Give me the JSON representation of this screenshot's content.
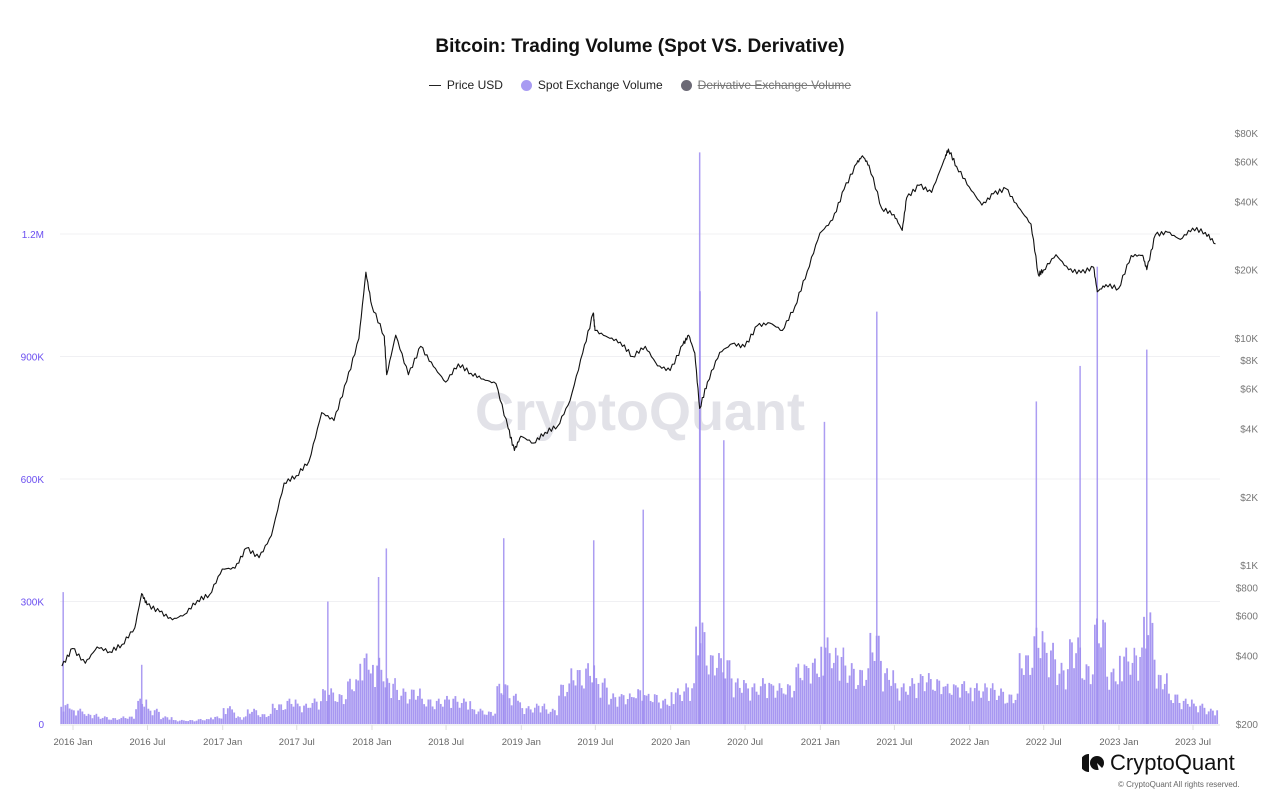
{
  "title": "Bitcoin: Trading Volume (Spot VS. Derivative)",
  "legend": [
    {
      "label": "Price USD",
      "color": "#222222",
      "marker": "line",
      "active": true
    },
    {
      "label": "Spot Exchange Volume",
      "color": "#a89bf2",
      "marker": "circle",
      "active": true
    },
    {
      "label": "Derivative Exchange Volume",
      "color": "#6b6975",
      "marker": "circle",
      "active": false
    }
  ],
  "watermark": "CryptoQuant",
  "logo_text": "CryptoQuant",
  "copyright": "© CryptoQuant All rights reserved.",
  "chart_data": {
    "type": "bar+line",
    "title": "Bitcoin: Trading Volume (Spot VS. Derivative)",
    "x_range": [
      "2015-12-05",
      "2023-08-30"
    ],
    "x_ticks": [
      "2016 Jan",
      "2016 Jul",
      "2017 Jan",
      "2017 Jul",
      "2018 Jan",
      "2018 Jul",
      "2019 Jan",
      "2019 Jul",
      "2020 Jan",
      "2020 Jul",
      "2021 Jan",
      "2021 Jul",
      "2022 Jan",
      "2022 Jul",
      "2023 Jan",
      "2023 Jul"
    ],
    "y_left": {
      "ticks": [
        "0",
        "300K",
        "600K",
        "900K",
        "1.2M"
      ],
      "values": [
        0,
        300000,
        600000,
        900000,
        1200000
      ],
      "range": [
        0,
        1440000
      ],
      "color": "#6b4ff0",
      "grid": true
    },
    "y_right": {
      "scale": "log",
      "ticks": [
        "$200",
        "$400",
        "$600",
        "$800",
        "$1K",
        "$2K",
        "$4K",
        "$6K",
        "$8K",
        "$10K",
        "$20K",
        "$40K",
        "$60K",
        "$80K"
      ],
      "values": [
        200,
        400,
        600,
        800,
        1000,
        2000,
        4000,
        6000,
        8000,
        10000,
        20000,
        40000,
        60000,
        80000
      ],
      "range": [
        200,
        80000
      ]
    },
    "series": [
      {
        "name": "Spot Exchange Volume",
        "type": "bar",
        "color": "#9d8cf0",
        "monthly": [
          [
            "2015-12",
            40000
          ],
          [
            "2016-01",
            30000
          ],
          [
            "2016-02",
            20000
          ],
          [
            "2016-03",
            15000
          ],
          [
            "2016-04",
            12000
          ],
          [
            "2016-05",
            15000
          ],
          [
            "2016-06",
            50000
          ],
          [
            "2016-07",
            30000
          ],
          [
            "2016-08",
            15000
          ],
          [
            "2016-09",
            8000
          ],
          [
            "2016-10",
            8000
          ],
          [
            "2016-11",
            10000
          ],
          [
            "2016-12",
            15000
          ],
          [
            "2017-01",
            35000
          ],
          [
            "2017-02",
            15000
          ],
          [
            "2017-03",
            30000
          ],
          [
            "2017-04",
            20000
          ],
          [
            "2017-05",
            40000
          ],
          [
            "2017-06",
            50000
          ],
          [
            "2017-07",
            40000
          ],
          [
            "2017-08",
            50000
          ],
          [
            "2017-09",
            70000
          ],
          [
            "2017-10",
            60000
          ],
          [
            "2017-11",
            90000
          ],
          [
            "2017-12",
            140000
          ],
          [
            "2018-01",
            130000
          ],
          [
            "2018-02",
            90000
          ],
          [
            "2018-03",
            70000
          ],
          [
            "2018-04",
            70000
          ],
          [
            "2018-05",
            50000
          ],
          [
            "2018-06",
            50000
          ],
          [
            "2018-07",
            55000
          ],
          [
            "2018-08",
            50000
          ],
          [
            "2018-09",
            30000
          ],
          [
            "2018-10",
            25000
          ],
          [
            "2018-11",
            80000
          ],
          [
            "2018-12",
            60000
          ],
          [
            "2019-01",
            35000
          ],
          [
            "2019-02",
            40000
          ],
          [
            "2019-03",
            30000
          ],
          [
            "2019-04",
            80000
          ],
          [
            "2019-05",
            110000
          ],
          [
            "2019-06",
            120000
          ],
          [
            "2019-07",
            90000
          ],
          [
            "2019-08",
            60000
          ],
          [
            "2019-09",
            60000
          ],
          [
            "2019-10",
            70000
          ],
          [
            "2019-11",
            60000
          ],
          [
            "2019-12",
            50000
          ],
          [
            "2020-01",
            70000
          ],
          [
            "2020-02",
            80000
          ],
          [
            "2020-03",
            200000
          ],
          [
            "2020-04",
            140000
          ],
          [
            "2020-05",
            130000
          ],
          [
            "2020-06",
            90000
          ],
          [
            "2020-07",
            80000
          ],
          [
            "2020-08",
            90000
          ],
          [
            "2020-09",
            80000
          ],
          [
            "2020-10",
            80000
          ],
          [
            "2020-11",
            120000
          ],
          [
            "2020-12",
            130000
          ],
          [
            "2021-01",
            170000
          ],
          [
            "2021-02",
            150000
          ],
          [
            "2021-03",
            120000
          ],
          [
            "2021-04",
            110000
          ],
          [
            "2021-05",
            180000
          ],
          [
            "2021-06",
            110000
          ],
          [
            "2021-07",
            80000
          ],
          [
            "2021-08",
            90000
          ],
          [
            "2021-09",
            100000
          ],
          [
            "2021-10",
            90000
          ],
          [
            "2021-11",
            80000
          ],
          [
            "2021-12",
            85000
          ],
          [
            "2022-01",
            80000
          ],
          [
            "2022-02",
            80000
          ],
          [
            "2022-03",
            70000
          ],
          [
            "2022-04",
            60000
          ],
          [
            "2022-05",
            140000
          ],
          [
            "2022-06",
            190000
          ],
          [
            "2022-07",
            160000
          ],
          [
            "2022-08",
            120000
          ],
          [
            "2022-09",
            170000
          ],
          [
            "2022-10",
            120000
          ],
          [
            "2022-11",
            210000
          ],
          [
            "2022-12",
            110000
          ],
          [
            "2023-01",
            150000
          ],
          [
            "2023-02",
            150000
          ],
          [
            "2023-03",
            220000
          ],
          [
            "2023-04",
            100000
          ],
          [
            "2023-05",
            60000
          ],
          [
            "2023-06",
            50000
          ],
          [
            "2023-07",
            40000
          ],
          [
            "2023-08",
            30000
          ]
        ],
        "spikes": [
          [
            "2015-12-08",
            323000
          ],
          [
            "2016-06-17",
            145000
          ],
          [
            "2017-09-15",
            300000
          ],
          [
            "2018-01-17",
            360000
          ],
          [
            "2018-02-05",
            430000
          ],
          [
            "2018-11-19",
            455000
          ],
          [
            "2019-06-27",
            450000
          ],
          [
            "2019-10-26",
            525000
          ],
          [
            "2020-03-12",
            1400000
          ],
          [
            "2020-03-13",
            1060000
          ],
          [
            "2020-05-10",
            695000
          ],
          [
            "2021-01-11",
            740000
          ],
          [
            "2021-05-19",
            1010000
          ],
          [
            "2022-06-13",
            790000
          ],
          [
            "2022-09-28",
            877000
          ],
          [
            "2022-11-09",
            1120000
          ],
          [
            "2023-03-10",
            917000
          ]
        ]
      },
      {
        "name": "Price USD",
        "type": "line",
        "color": "#111111",
        "axis": "right",
        "points": [
          [
            "2015-12-05",
            360
          ],
          [
            "2015-12-31",
            430
          ],
          [
            "2016-01-31",
            370
          ],
          [
            "2016-02-29",
            437
          ],
          [
            "2016-03-31",
            416
          ],
          [
            "2016-04-30",
            448
          ],
          [
            "2016-05-31",
            530
          ],
          [
            "2016-06-17",
            750
          ],
          [
            "2016-06-30",
            670
          ],
          [
            "2016-07-31",
            624
          ],
          [
            "2016-08-31",
            575
          ],
          [
            "2016-09-30",
            608
          ],
          [
            "2016-10-31",
            700
          ],
          [
            "2016-11-30",
            742
          ],
          [
            "2016-12-31",
            963
          ],
          [
            "2017-01-31",
            970
          ],
          [
            "2017-02-28",
            1190
          ],
          [
            "2017-03-31",
            1080
          ],
          [
            "2017-04-30",
            1350
          ],
          [
            "2017-05-31",
            2300
          ],
          [
            "2017-06-30",
            2480
          ],
          [
            "2017-07-31",
            2870
          ],
          [
            "2017-08-31",
            4700
          ],
          [
            "2017-09-30",
            4340
          ],
          [
            "2017-10-31",
            6450
          ],
          [
            "2017-11-30",
            9950
          ],
          [
            "2017-12-17",
            19500
          ],
          [
            "2017-12-31",
            14000
          ],
          [
            "2018-01-31",
            10200
          ],
          [
            "2018-02-06",
            6900
          ],
          [
            "2018-02-28",
            10300
          ],
          [
            "2018-03-31",
            6900
          ],
          [
            "2018-04-30",
            9200
          ],
          [
            "2018-05-31",
            7500
          ],
          [
            "2018-06-30",
            6400
          ],
          [
            "2018-07-31",
            7700
          ],
          [
            "2018-08-31",
            7000
          ],
          [
            "2018-09-30",
            6600
          ],
          [
            "2018-10-31",
            6300
          ],
          [
            "2018-11-30",
            4000
          ],
          [
            "2018-12-15",
            3200
          ],
          [
            "2018-12-31",
            3700
          ],
          [
            "2019-01-31",
            3450
          ],
          [
            "2019-02-28",
            3850
          ],
          [
            "2019-03-31",
            4100
          ],
          [
            "2019-04-30",
            5300
          ],
          [
            "2019-05-31",
            8600
          ],
          [
            "2019-06-26",
            12900
          ],
          [
            "2019-06-30",
            10800
          ],
          [
            "2019-07-31",
            10100
          ],
          [
            "2019-08-31",
            9600
          ],
          [
            "2019-09-30",
            8300
          ],
          [
            "2019-10-31",
            9200
          ],
          [
            "2019-11-30",
            7550
          ],
          [
            "2019-12-31",
            7200
          ],
          [
            "2020-01-31",
            9350
          ],
          [
            "2020-02-14",
            10300
          ],
          [
            "2020-02-29",
            8600
          ],
          [
            "2020-03-12",
            4900
          ],
          [
            "2020-03-31",
            6400
          ],
          [
            "2020-04-30",
            8650
          ],
          [
            "2020-05-31",
            9450
          ],
          [
            "2020-06-30",
            9150
          ],
          [
            "2020-07-31",
            11350
          ],
          [
            "2020-08-31",
            11650
          ],
          [
            "2020-09-30",
            10800
          ],
          [
            "2020-10-31",
            13800
          ],
          [
            "2020-11-30",
            19700
          ],
          [
            "2020-12-31",
            29000
          ],
          [
            "2021-01-31",
            33100
          ],
          [
            "2021-02-28",
            45200
          ],
          [
            "2021-03-31",
            58800
          ],
          [
            "2021-04-14",
            63500
          ],
          [
            "2021-04-30",
            57700
          ],
          [
            "2021-05-31",
            37300
          ],
          [
            "2021-06-30",
            35000
          ],
          [
            "2021-07-20",
            29800
          ],
          [
            "2021-07-31",
            41500
          ],
          [
            "2021-08-31",
            47100
          ],
          [
            "2021-09-30",
            43800
          ],
          [
            "2021-10-31",
            61300
          ],
          [
            "2021-11-10",
            68000
          ],
          [
            "2021-11-30",
            57000
          ],
          [
            "2021-12-31",
            46300
          ],
          [
            "2022-01-31",
            38500
          ],
          [
            "2022-02-28",
            43200
          ],
          [
            "2022-03-31",
            45500
          ],
          [
            "2022-04-30",
            37700
          ],
          [
            "2022-05-31",
            31800
          ],
          [
            "2022-06-18",
            19000
          ],
          [
            "2022-06-30",
            19900
          ],
          [
            "2022-07-31",
            23300
          ],
          [
            "2022-08-31",
            20000
          ],
          [
            "2022-09-30",
            19400
          ],
          [
            "2022-10-31",
            20500
          ],
          [
            "2022-11-09",
            16000
          ],
          [
            "2022-11-30",
            17200
          ],
          [
            "2022-12-31",
            16550
          ],
          [
            "2023-01-31",
            23100
          ],
          [
            "2023-02-28",
            23150
          ],
          [
            "2023-03-10",
            20000
          ],
          [
            "2023-03-31",
            28500
          ],
          [
            "2023-04-30",
            29250
          ],
          [
            "2023-05-31",
            27200
          ],
          [
            "2023-06-30",
            30500
          ],
          [
            "2023-07-31",
            29200
          ],
          [
            "2023-08-25",
            26000
          ]
        ]
      }
    ],
    "legend_position": "top-center"
  }
}
